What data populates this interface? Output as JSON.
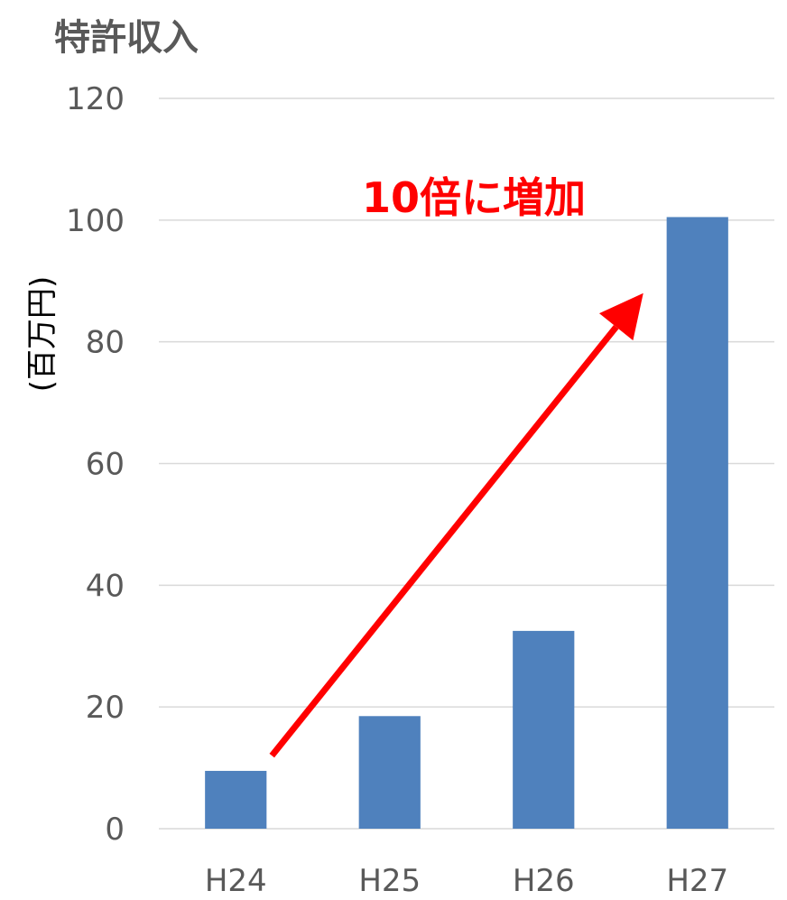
{
  "chart_data": {
    "type": "bar",
    "title": "特許収入",
    "ylabel": "(百万円)",
    "xlabel": "",
    "categories": [
      "H24",
      "H25",
      "H26",
      "H27"
    ],
    "values": [
      9.5,
      18.5,
      32.5,
      100.5
    ],
    "ylim": [
      0,
      120
    ],
    "yticks": [
      0,
      20,
      40,
      60,
      80,
      100,
      120
    ],
    "grid": true,
    "bar_color": "#4f81bd",
    "annotation": {
      "text": "10倍に増加",
      "color": "#ff0000",
      "arrow_from": {
        "category": "H24",
        "value": 12
      },
      "arrow_to": {
        "category": "H27",
        "value": 88
      }
    }
  }
}
